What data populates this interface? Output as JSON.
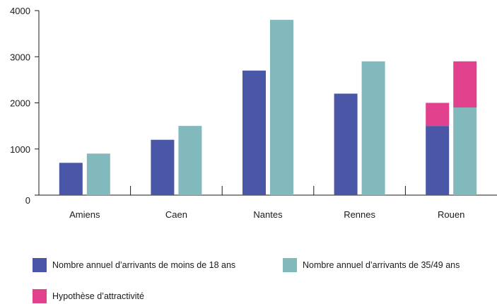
{
  "chart_data": {
    "type": "bar",
    "stacked_last": true,
    "categories": [
      "Amiens",
      "Caen",
      "Nantes",
      "Rennes",
      "Rouen"
    ],
    "ylim": [
      0,
      4000
    ],
    "yticks": [
      0,
      1000,
      2000,
      3000,
      4000
    ],
    "series": [
      {
        "name": "Nombre annuel d’arrivants de moins de 18 ans",
        "color": "#4a56a6",
        "values": [
          700,
          1200,
          2700,
          2200,
          1500
        ]
      },
      {
        "name": "Nombre annuel d’arrivants de 35/49 ans",
        "color": "#82b9bd",
        "values": [
          900,
          1500,
          3800,
          2900,
          1900
        ]
      },
      {
        "name": "Hypothèse d’attractivité",
        "color": "#e2418e",
        "stack": [
          {
            "category": "Rouen",
            "on": "Nombre annuel d’arrivants de moins de 18 ans",
            "value": 500
          },
          {
            "category": "Rouen",
            "on": "Nombre annuel d’arrivants de 35/49 ans",
            "value": 1000
          }
        ]
      }
    ],
    "xlabel": "",
    "ylabel": "",
    "title": ""
  }
}
